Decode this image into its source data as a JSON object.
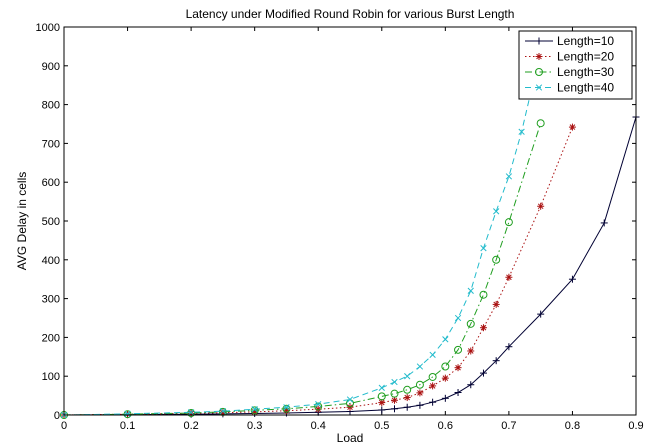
{
  "chart_data": {
    "type": "line",
    "title": "Latency under Modified Round Robin for various Burst Length",
    "xlabel": "Load",
    "ylabel": "AVG Delay in cells",
    "xlim": [
      0,
      0.9
    ],
    "ylim": [
      0,
      1000
    ],
    "xticks": [
      "0",
      "0.1",
      "0.2",
      "0.3",
      "0.4",
      "0.5",
      "0.6",
      "0.7",
      "0.8",
      "0.9"
    ],
    "yticks": [
      "0",
      "100",
      "200",
      "300",
      "400",
      "500",
      "600",
      "700",
      "800",
      "900",
      "1000"
    ],
    "grid": false,
    "legend_position": "top-right",
    "series": [
      {
        "name": "Length=10",
        "color": "#000033",
        "marker": "plus",
        "dash": "solid",
        "x": [
          0,
          0.1,
          0.2,
          0.25,
          0.3,
          0.35,
          0.4,
          0.45,
          0.5,
          0.52,
          0.54,
          0.56,
          0.58,
          0.6,
          0.62,
          0.64,
          0.66,
          0.68,
          0.7,
          0.75,
          0.8,
          0.85,
          0.9
        ],
        "y": [
          0,
          1,
          2,
          3,
          4,
          5,
          7,
          9,
          13,
          16,
          20,
          25,
          33,
          43,
          58,
          78,
          108,
          140,
          176,
          260,
          350,
          495,
          768
        ]
      },
      {
        "name": "Length=20",
        "color": "#aa1111",
        "marker": "star",
        "dash": "dotted",
        "x": [
          0,
          0.1,
          0.2,
          0.25,
          0.3,
          0.35,
          0.4,
          0.45,
          0.5,
          0.52,
          0.54,
          0.56,
          0.58,
          0.6,
          0.62,
          0.64,
          0.66,
          0.68,
          0.7,
          0.75,
          0.8
        ],
        "y": [
          0,
          2,
          4,
          6,
          8,
          11,
          15,
          20,
          32,
          38,
          45,
          57,
          75,
          95,
          122,
          165,
          225,
          285,
          355,
          538,
          742
        ]
      },
      {
        "name": "Length=30",
        "color": "#1f9e1f",
        "marker": "circle",
        "dash": "dashdot",
        "x": [
          0,
          0.1,
          0.2,
          0.25,
          0.3,
          0.35,
          0.4,
          0.45,
          0.5,
          0.52,
          0.54,
          0.56,
          0.58,
          0.6,
          0.62,
          0.64,
          0.66,
          0.68,
          0.7,
          0.75
        ],
        "y": [
          0,
          2,
          5,
          8,
          12,
          16,
          22,
          30,
          48,
          55,
          65,
          78,
          98,
          125,
          168,
          235,
          310,
          400,
          497,
          752
        ]
      },
      {
        "name": "Length=40",
        "color": "#22bbcc",
        "marker": "x",
        "dash": "dashed",
        "x": [
          0,
          0.1,
          0.2,
          0.25,
          0.3,
          0.35,
          0.4,
          0.45,
          0.5,
          0.52,
          0.54,
          0.56,
          0.58,
          0.6,
          0.62,
          0.64,
          0.66,
          0.68,
          0.7,
          0.72,
          0.74
        ],
        "y": [
          0,
          3,
          7,
          10,
          15,
          20,
          28,
          40,
          70,
          85,
          100,
          125,
          155,
          195,
          250,
          320,
          430,
          525,
          615,
          730,
          870
        ]
      }
    ]
  }
}
